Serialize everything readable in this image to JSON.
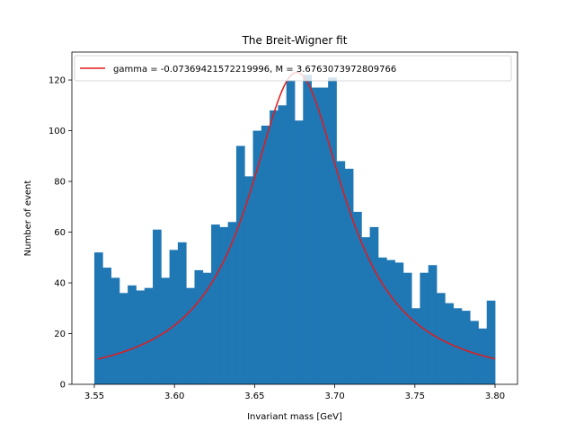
{
  "chart_data": {
    "type": "bar",
    "title": "The Breit-Wigner fit",
    "xlabel": "Invariant mass [GeV]",
    "ylabel": "Number of event",
    "xlim": [
      3.536,
      3.814
    ],
    "ylim": [
      0,
      131
    ],
    "xticks": [
      3.55,
      3.6,
      3.65,
      3.7,
      3.75,
      3.8
    ],
    "xtick_labels": [
      "3.55",
      "3.60",
      "3.65",
      "3.70",
      "3.75",
      "3.80"
    ],
    "yticks": [
      0,
      20,
      40,
      60,
      80,
      100,
      120
    ],
    "ytick_labels": [
      "0",
      "20",
      "40",
      "60",
      "80",
      "100",
      "120"
    ],
    "bin_start": 3.55,
    "bin_end": 3.8,
    "bin_counts": [
      52,
      46,
      42,
      36,
      39,
      37,
      38,
      61,
      42,
      53,
      56,
      38,
      45,
      44,
      63,
      62,
      64,
      94,
      82,
      100,
      102,
      108,
      110,
      120,
      104,
      122,
      117,
      117,
      121,
      88,
      85,
      68,
      58,
      62,
      50,
      49,
      48,
      44,
      30,
      44,
      47,
      36,
      32,
      30,
      29,
      25,
      22,
      33
    ],
    "bar_color": "#1f77b4",
    "fit": {
      "name": "gamma = -0.07369421572219996, M = 3.6763073972809766",
      "gamma": -0.07369421572219996,
      "M": 3.6763073972809766,
      "peak": 123,
      "color": "#e41a1c",
      "x_range": [
        3.552,
        3.8
      ]
    },
    "legend_position": "top-left",
    "grid": false
  }
}
